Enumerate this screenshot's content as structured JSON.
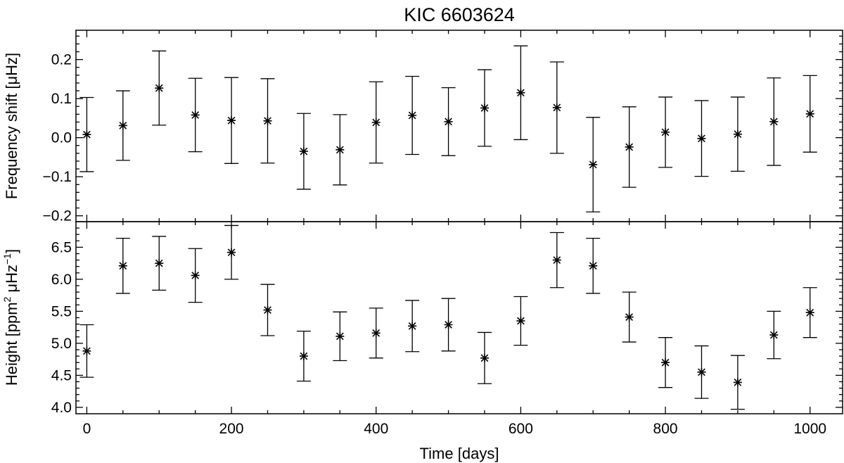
{
  "chart_data": {
    "type": "scatter",
    "title": "KIC 6603624",
    "xlabel": "Time [days]",
    "xlim": [
      -15,
      1045
    ],
    "xticks": [
      "0",
      "200",
      "400",
      "600",
      "800",
      "1000"
    ],
    "x": [
      0,
      50,
      100,
      150,
      200,
      250,
      300,
      350,
      400,
      450,
      500,
      550,
      600,
      650,
      700,
      750,
      800,
      850,
      900,
      950,
      1000
    ],
    "panels": [
      {
        "name": "frequency-shift",
        "ylabel": "Frequency shift [μHz]",
        "ylim": [
          -0.215,
          0.275
        ],
        "yticks": [
          "0.2",
          "0.1",
          "0.0",
          "−0.1",
          "−0.2"
        ],
        "series": [
          {
            "values": [
              0.008,
              0.031,
              0.127,
              0.058,
              0.044,
              0.043,
              -0.035,
              -0.031,
              0.039,
              0.057,
              0.041,
              0.076,
              0.115,
              0.077,
              -0.069,
              -0.024,
              0.014,
              -0.002,
              0.009,
              0.041,
              0.061
            ],
            "errors": [
              0.095,
              0.089,
              0.095,
              0.094,
              0.11,
              0.108,
              0.097,
              0.09,
              0.104,
              0.1,
              0.087,
              0.098,
              0.12,
              0.117,
              0.121,
              0.103,
              0.09,
              0.097,
              0.095,
              0.112,
              0.098
            ]
          }
        ]
      },
      {
        "name": "height",
        "ylabel_parts": [
          "Height [ppm",
          "2",
          " μHz",
          "−1",
          "]"
        ],
        "ylim": [
          3.9,
          6.9
        ],
        "yticks": [
          "6.5",
          "6.0",
          "5.5",
          "5.0",
          "4.5",
          "4.0"
        ],
        "series": [
          {
            "values": [
              4.88,
              6.21,
              6.25,
              6.06,
              6.42,
              5.52,
              4.8,
              5.11,
              5.16,
              5.27,
              5.29,
              4.77,
              5.35,
              6.3,
              6.21,
              5.41,
              4.7,
              4.55,
              4.39,
              5.13,
              5.48
            ],
            "errors": [
              0.41,
              0.43,
              0.42,
              0.42,
              0.42,
              0.4,
              0.39,
              0.38,
              0.39,
              0.4,
              0.41,
              0.4,
              0.38,
              0.43,
              0.43,
              0.39,
              0.39,
              0.41,
              0.42,
              0.37,
              0.39
            ]
          }
        ]
      }
    ],
    "grid": false,
    "marker": "asterisk",
    "error_bars": true
  }
}
